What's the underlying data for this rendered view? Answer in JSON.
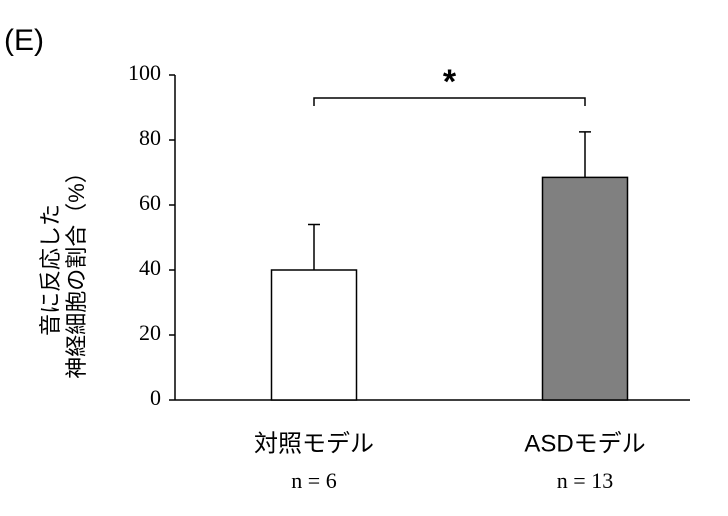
{
  "chart_data": {
    "type": "bar",
    "panel_label": "(E)",
    "ylabel": [
      "音に反応した",
      "神経細胞の割合（%）"
    ],
    "categories": [
      "対照モデル",
      "ASDモデル"
    ],
    "sample_sizes": [
      "n = 6",
      "n = 13"
    ],
    "values": [
      40,
      68.5
    ],
    "errors": [
      14,
      14
    ],
    "colors": [
      "#ffffff",
      "#808080"
    ],
    "significance": "*",
    "ylim": [
      0,
      100
    ],
    "yticks": [
      0,
      20,
      40,
      60,
      80,
      100
    ]
  }
}
